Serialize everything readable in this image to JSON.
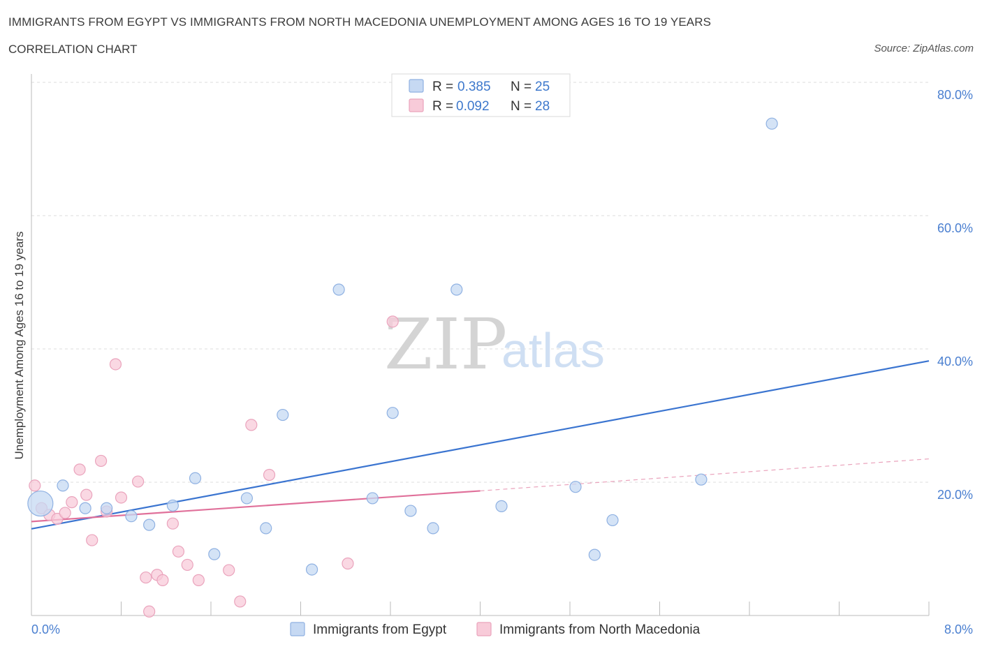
{
  "header": {
    "title": "IMMIGRANTS FROM EGYPT VS IMMIGRANTS FROM NORTH MACEDONIA UNEMPLOYMENT AMONG AGES 16 TO 19 YEARS",
    "subtitle": "CORRELATION CHART",
    "source": "Source: ZipAtlas.com"
  },
  "watermark": {
    "zip": "ZIP",
    "atlas": "atlas"
  },
  "legend": {
    "rows": [
      {
        "r_label": "R =",
        "r_value": "0.385",
        "n_label": "N =",
        "n_value": "25"
      },
      {
        "r_label": "R =",
        "r_value": "0.092",
        "n_label": "N =",
        "n_value": "28"
      }
    ]
  },
  "chart_data": {
    "type": "scatter",
    "title": "IMMIGRANTS FROM EGYPT VS IMMIGRANTS FROM NORTH MACEDONIA UNEMPLOYMENT AMONG AGES 16 TO 19 YEARS",
    "xlabel": "",
    "ylabel": "Unemployment Among Ages 16 to 19 years",
    "xlim": [
      0,
      8
    ],
    "ylim": [
      0,
      80
    ],
    "x_tick_labels": [
      "0.0%",
      "8.0%"
    ],
    "y_ticks": [
      20,
      40,
      60,
      80
    ],
    "y_tick_labels": [
      "20.0%",
      "40.0%",
      "60.0%",
      "80.0%"
    ],
    "colors": {
      "egypt": "#4a7fd0",
      "egypt_fill": "#c6d9f3",
      "macedonia": "#e07aa0",
      "macedonia_fill": "#f8cbd9"
    },
    "series": [
      {
        "name": "Immigrants from Egypt",
        "points": [
          [
            0.08,
            16.8,
            "big"
          ],
          [
            0.28,
            19.5
          ],
          [
            0.48,
            16.1
          ],
          [
            0.67,
            16.1
          ],
          [
            0.89,
            14.9
          ],
          [
            1.05,
            13.6
          ],
          [
            1.26,
            16.5
          ],
          [
            1.46,
            20.6
          ],
          [
            1.63,
            9.2
          ],
          [
            1.92,
            17.6
          ],
          [
            2.09,
            13.1
          ],
          [
            2.24,
            30.1
          ],
          [
            2.5,
            6.9
          ],
          [
            2.74,
            48.9
          ],
          [
            3.04,
            17.6
          ],
          [
            3.22,
            30.4
          ],
          [
            3.38,
            15.7
          ],
          [
            3.58,
            13.1
          ],
          [
            3.79,
            48.9
          ],
          [
            4.19,
            16.4
          ],
          [
            4.85,
            19.3
          ],
          [
            5.02,
            9.1
          ],
          [
            5.18,
            14.3
          ],
          [
            5.97,
            20.4
          ],
          [
            6.6,
            73.8
          ]
        ],
        "trend": {
          "x": [
            0,
            8
          ],
          "y": [
            13.0,
            38.2
          ]
        }
      },
      {
        "name": "Immigrants from North Macedonia",
        "points": [
          [
            0.03,
            19.5
          ],
          [
            0.09,
            16.1
          ],
          [
            0.16,
            15.1
          ],
          [
            0.23,
            14.5
          ],
          [
            0.3,
            15.4
          ],
          [
            0.36,
            17.0
          ],
          [
            0.43,
            21.9
          ],
          [
            0.49,
            18.1
          ],
          [
            0.54,
            11.3
          ],
          [
            0.62,
            23.2
          ],
          [
            0.67,
            15.6
          ],
          [
            0.75,
            37.7
          ],
          [
            0.8,
            17.7
          ],
          [
            0.95,
            20.1
          ],
          [
            1.02,
            5.7
          ],
          [
            1.05,
            0.6
          ],
          [
            1.12,
            6.1
          ],
          [
            1.17,
            5.3
          ],
          [
            1.26,
            13.8
          ],
          [
            1.31,
            9.6
          ],
          [
            1.39,
            7.6
          ],
          [
            1.49,
            5.3
          ],
          [
            1.76,
            6.8
          ],
          [
            1.86,
            2.1
          ],
          [
            1.96,
            28.6
          ],
          [
            2.12,
            21.1
          ],
          [
            2.82,
            7.8
          ],
          [
            3.22,
            44.1
          ]
        ],
        "trend": {
          "x": [
            0,
            4
          ],
          "y": [
            14.1,
            18.7
          ]
        },
        "trend_dashed": {
          "x": [
            4,
            8
          ],
          "y": [
            18.7,
            23.5
          ]
        }
      }
    ]
  },
  "bottom_legend": {
    "items": [
      {
        "label": "Immigrants from Egypt"
      },
      {
        "label": "Immigrants from North Macedonia"
      }
    ]
  }
}
